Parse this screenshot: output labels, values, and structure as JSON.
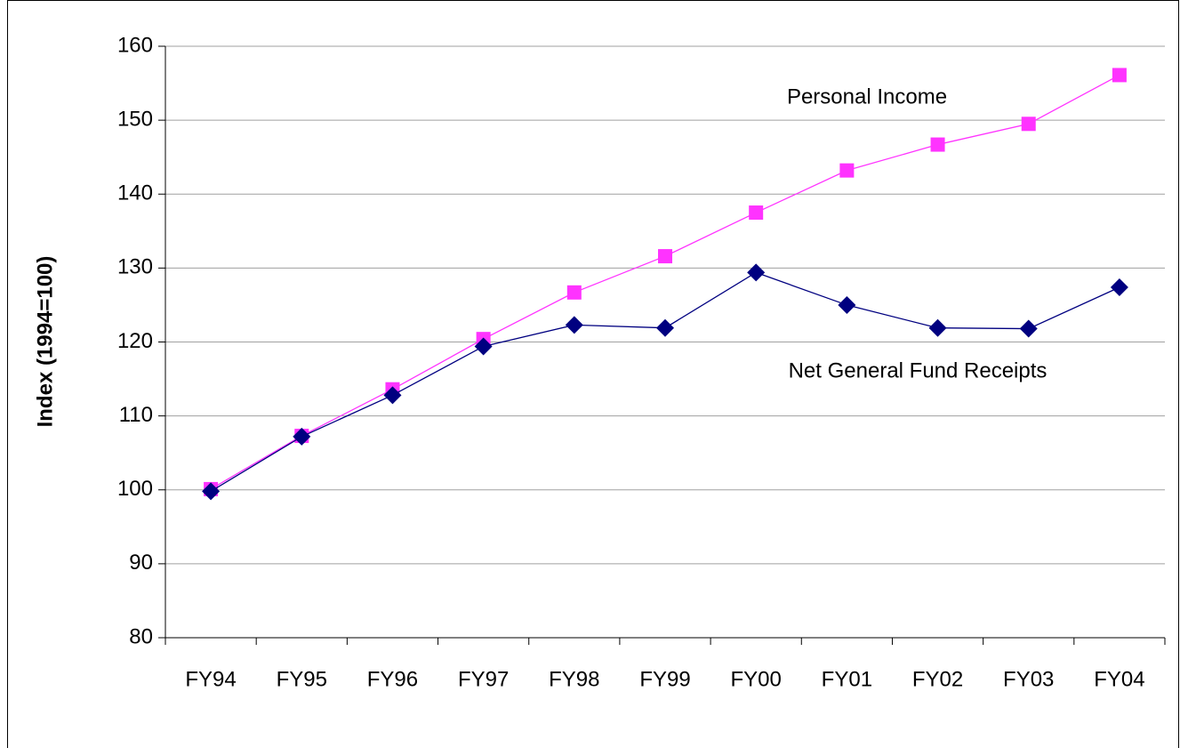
{
  "chart_data": {
    "type": "line",
    "y_label": "Index (1994=100)",
    "categories": [
      "FY94",
      "FY95",
      "FY96",
      "FY97",
      "FY98",
      "FY99",
      "FY00",
      "FY01",
      "FY02",
      "FY03",
      "FY04"
    ],
    "series": [
      {
        "name": "Personal Income",
        "color": "#ff33ff",
        "marker": "square",
        "values": [
          100.1,
          107.3,
          113.6,
          120.4,
          126.7,
          131.6,
          137.5,
          143.2,
          146.7,
          149.5,
          156.1
        ]
      },
      {
        "name": "Net General Fund Receipts",
        "color": "#000080",
        "marker": "diamond",
        "values": [
          99.8,
          107.2,
          112.8,
          119.4,
          122.3,
          121.9,
          129.4,
          125.0,
          121.9,
          121.8,
          127.4
        ]
      }
    ],
    "ylim": [
      80,
      160
    ],
    "yticks": [
      80,
      90,
      100,
      110,
      120,
      130,
      140,
      150,
      160
    ],
    "grid": true
  }
}
